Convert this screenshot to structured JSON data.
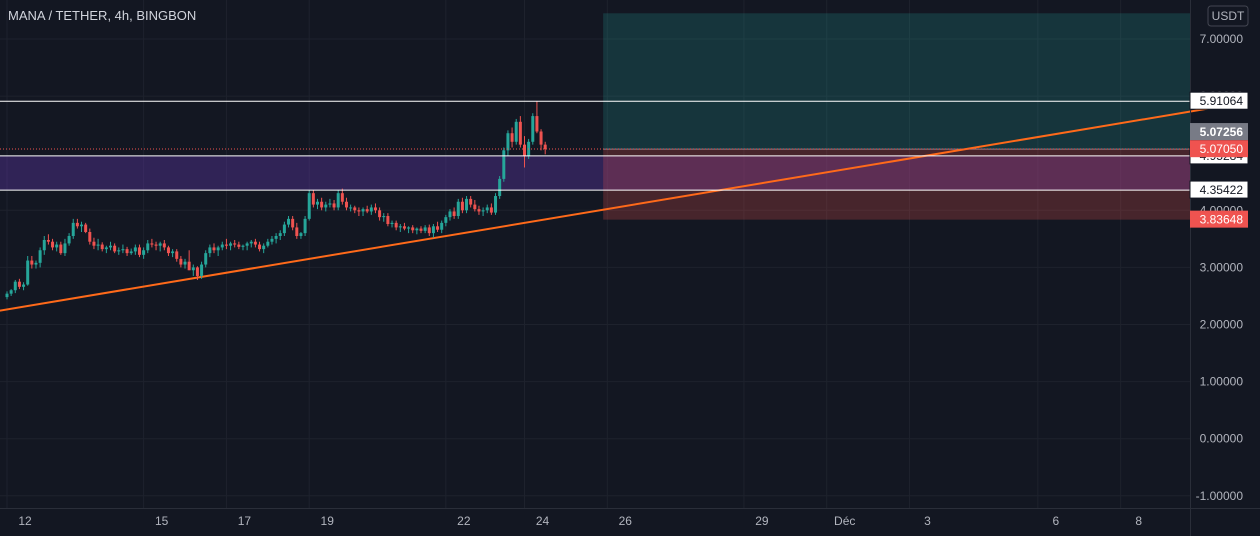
{
  "chart_data": {
    "type": "candlestick",
    "title": "MANA / TETHER, 4h, BINGBON",
    "currency_label": "USDT",
    "y_axis": {
      "range": [
        -1.3,
        7.45
      ],
      "ticks": [
        "7.00000",
        "3.00000",
        "2.00000",
        "1.00000",
        "0.00000",
        "-1.00000"
      ],
      "tick_values": [
        7,
        3,
        2,
        1,
        0,
        -1
      ],
      "partially_hidden_ticks": [
        "6.00000",
        "4.00000"
      ],
      "partially_hidden_values": [
        6,
        4
      ]
    },
    "x_axis": {
      "ticks": [
        "12",
        "15",
        "17",
        "19",
        "22",
        "24",
        "26",
        "29",
        "Déc",
        "3",
        "6",
        "8"
      ],
      "tick_index": [
        0,
        33,
        53,
        73,
        106,
        125,
        145,
        178,
        198,
        218,
        249,
        269
      ]
    },
    "candles_ohlc": [
      [
        2.48,
        2.58,
        2.44,
        2.54
      ],
      [
        2.54,
        2.62,
        2.5,
        2.6
      ],
      [
        2.6,
        2.78,
        2.55,
        2.75
      ],
      [
        2.75,
        2.8,
        2.62,
        2.66
      ],
      [
        2.66,
        2.74,
        2.6,
        2.7
      ],
      [
        2.7,
        3.2,
        2.68,
        3.12
      ],
      [
        3.12,
        3.2,
        2.98,
        3.05
      ],
      [
        3.05,
        3.12,
        2.98,
        3.08
      ],
      [
        3.08,
        3.35,
        3.0,
        3.3
      ],
      [
        3.3,
        3.55,
        3.22,
        3.48
      ],
      [
        3.48,
        3.58,
        3.4,
        3.45
      ],
      [
        3.45,
        3.5,
        3.3,
        3.35
      ],
      [
        3.35,
        3.45,
        3.28,
        3.4
      ],
      [
        3.4,
        3.45,
        3.22,
        3.25
      ],
      [
        3.25,
        3.5,
        3.2,
        3.42
      ],
      [
        3.42,
        3.6,
        3.38,
        3.55
      ],
      [
        3.55,
        3.85,
        3.5,
        3.78
      ],
      [
        3.78,
        3.85,
        3.68,
        3.72
      ],
      [
        3.72,
        3.8,
        3.62,
        3.75
      ],
      [
        3.75,
        3.78,
        3.6,
        3.62
      ],
      [
        3.62,
        3.68,
        3.4,
        3.45
      ],
      [
        3.45,
        3.52,
        3.32,
        3.38
      ],
      [
        3.38,
        3.5,
        3.3,
        3.4
      ],
      [
        3.4,
        3.44,
        3.28,
        3.32
      ],
      [
        3.32,
        3.38,
        3.25,
        3.35
      ],
      [
        3.35,
        3.45,
        3.3,
        3.38
      ],
      [
        3.38,
        3.42,
        3.25,
        3.28
      ],
      [
        3.28,
        3.35,
        3.22,
        3.3
      ],
      [
        3.3,
        3.4,
        3.25,
        3.32
      ],
      [
        3.32,
        3.36,
        3.2,
        3.25
      ],
      [
        3.25,
        3.33,
        3.22,
        3.28
      ],
      [
        3.28,
        3.4,
        3.22,
        3.35
      ],
      [
        3.35,
        3.4,
        3.18,
        3.22
      ],
      [
        3.22,
        3.35,
        3.15,
        3.3
      ],
      [
        3.3,
        3.48,
        3.25,
        3.42
      ],
      [
        3.42,
        3.5,
        3.35,
        3.4
      ],
      [
        3.4,
        3.45,
        3.3,
        3.38
      ],
      [
        3.38,
        3.45,
        3.28,
        3.42
      ],
      [
        3.42,
        3.48,
        3.3,
        3.35
      ],
      [
        3.35,
        3.38,
        3.2,
        3.25
      ],
      [
        3.25,
        3.32,
        3.18,
        3.28
      ],
      [
        3.28,
        3.32,
        3.1,
        3.15
      ],
      [
        3.15,
        3.2,
        3.0,
        3.05
      ],
      [
        3.05,
        3.15,
        2.98,
        3.1
      ],
      [
        3.1,
        3.3,
        2.95,
        2.95
      ],
      [
        2.95,
        3.05,
        2.85,
        3.0
      ],
      [
        3.0,
        3.02,
        2.78,
        2.85
      ],
      [
        2.85,
        3.1,
        2.8,
        3.05
      ],
      [
        3.05,
        3.3,
        3.0,
        3.25
      ],
      [
        3.25,
        3.4,
        3.18,
        3.35
      ],
      [
        3.35,
        3.42,
        3.25,
        3.3
      ],
      [
        3.3,
        3.38,
        3.2,
        3.35
      ],
      [
        3.35,
        3.45,
        3.3,
        3.4
      ],
      [
        3.4,
        3.5,
        3.32,
        3.38
      ],
      [
        3.38,
        3.45,
        3.3,
        3.42
      ],
      [
        3.42,
        3.48,
        3.35,
        3.4
      ],
      [
        3.4,
        3.45,
        3.32,
        3.36
      ],
      [
        3.36,
        3.4,
        3.3,
        3.38
      ],
      [
        3.38,
        3.45,
        3.3,
        3.42
      ],
      [
        3.42,
        3.48,
        3.35,
        3.45
      ],
      [
        3.45,
        3.5,
        3.35,
        3.4
      ],
      [
        3.4,
        3.45,
        3.28,
        3.32
      ],
      [
        3.32,
        3.42,
        3.25,
        3.38
      ],
      [
        3.38,
        3.5,
        3.35,
        3.45
      ],
      [
        3.45,
        3.55,
        3.4,
        3.5
      ],
      [
        3.5,
        3.6,
        3.42,
        3.55
      ],
      [
        3.55,
        3.65,
        3.48,
        3.6
      ],
      [
        3.6,
        3.8,
        3.55,
        3.75
      ],
      [
        3.75,
        3.9,
        3.7,
        3.85
      ],
      [
        3.85,
        3.9,
        3.65,
        3.7
      ],
      [
        3.7,
        3.78,
        3.5,
        3.55
      ],
      [
        3.55,
        3.62,
        3.5,
        3.6
      ],
      [
        3.6,
        3.9,
        3.55,
        3.85
      ],
      [
        3.85,
        4.35,
        3.82,
        4.3
      ],
      [
        4.3,
        4.35,
        4.05,
        4.1
      ],
      [
        4.1,
        4.2,
        4.02,
        4.15
      ],
      [
        4.15,
        4.22,
        4.0,
        4.05
      ],
      [
        4.05,
        4.15,
        3.98,
        4.1
      ],
      [
        4.1,
        4.2,
        4.05,
        4.12
      ],
      [
        4.12,
        4.18,
        4.0,
        4.05
      ],
      [
        4.05,
        4.35,
        4.0,
        4.3
      ],
      [
        4.3,
        4.38,
        4.1,
        4.15
      ],
      [
        4.15,
        4.22,
        4.0,
        4.05
      ],
      [
        4.05,
        4.1,
        3.98,
        4.05
      ],
      [
        4.05,
        4.08,
        3.95,
        4.0
      ],
      [
        4.0,
        4.05,
        3.9,
        3.98
      ],
      [
        3.98,
        4.05,
        3.9,
        4.02
      ],
      [
        4.02,
        4.08,
        3.95,
        3.98
      ],
      [
        3.98,
        4.1,
        3.92,
        4.05
      ],
      [
        4.05,
        4.12,
        3.95,
        4.0
      ],
      [
        4.0,
        4.05,
        3.82,
        3.88
      ],
      [
        3.88,
        3.95,
        3.8,
        3.9
      ],
      [
        3.9,
        3.95,
        3.72,
        3.76
      ],
      [
        3.76,
        3.82,
        3.7,
        3.78
      ],
      [
        3.78,
        3.82,
        3.65,
        3.7
      ],
      [
        3.7,
        3.76,
        3.62,
        3.72
      ],
      [
        3.72,
        3.78,
        3.65,
        3.68
      ],
      [
        3.68,
        3.72,
        3.6,
        3.7
      ],
      [
        3.7,
        3.74,
        3.6,
        3.65
      ],
      [
        3.65,
        3.7,
        3.58,
        3.68
      ],
      [
        3.68,
        3.72,
        3.6,
        3.64
      ],
      [
        3.64,
        3.74,
        3.6,
        3.7
      ],
      [
        3.7,
        3.75,
        3.55,
        3.6
      ],
      [
        3.6,
        3.76,
        3.52,
        3.72
      ],
      [
        3.72,
        3.8,
        3.62,
        3.66
      ],
      [
        3.66,
        3.82,
        3.6,
        3.78
      ],
      [
        3.78,
        3.92,
        3.72,
        3.88
      ],
      [
        3.88,
        4.02,
        3.82,
        3.98
      ],
      [
        3.98,
        4.05,
        3.85,
        3.9
      ],
      [
        3.9,
        4.2,
        3.85,
        4.15
      ],
      [
        4.15,
        4.22,
        3.95,
        4.0
      ],
      [
        4.0,
        4.25,
        3.95,
        4.2
      ],
      [
        4.2,
        4.25,
        4.05,
        4.1
      ],
      [
        4.1,
        4.18,
        3.98,
        4.02
      ],
      [
        4.02,
        4.08,
        3.92,
        3.98
      ],
      [
        3.98,
        4.05,
        3.9,
        4.0
      ],
      [
        4.0,
        4.1,
        3.95,
        4.05
      ],
      [
        4.05,
        4.12,
        3.92,
        3.96
      ],
      [
        3.96,
        4.3,
        3.92,
        4.25
      ],
      [
        4.25,
        4.6,
        4.2,
        4.55
      ],
      [
        4.55,
        5.1,
        4.5,
        5.05
      ],
      [
        5.05,
        5.4,
        4.95,
        5.35
      ],
      [
        5.35,
        5.45,
        5.1,
        5.2
      ],
      [
        5.2,
        5.6,
        5.15,
        5.55
      ],
      [
        5.55,
        5.65,
        5.1,
        5.15
      ],
      [
        5.15,
        5.3,
        4.75,
        4.95
      ],
      [
        4.95,
        5.25,
        4.9,
        5.2
      ],
      [
        5.2,
        5.7,
        5.15,
        5.65
      ],
      [
        5.65,
        5.91,
        5.35,
        5.38
      ],
      [
        5.38,
        5.42,
        5.05,
        5.15
      ],
      [
        5.15,
        5.2,
        4.98,
        5.07
      ]
    ],
    "horizontal_lines": [
      {
        "value": 5.91064,
        "label": "5.91064",
        "color": "#ffffff"
      },
      {
        "value": 4.95284,
        "label": "4.95284",
        "color": "#ffffff"
      },
      {
        "value": 4.35422,
        "label": "4.35422",
        "color": "#ffffff"
      }
    ],
    "purple_zone": {
      "from": 4.35422,
      "to": 4.95284,
      "color": "#673ab7"
    },
    "position": {
      "entry": 5.0705,
      "entry_label": "5.07050",
      "target_top": 7.45,
      "stop": 3.83648,
      "stop_label": "3.83648",
      "start_index": 144,
      "profit_color": "#26a69a",
      "loss_color": "#ef5350"
    },
    "last_price": {
      "value": 5.07256,
      "label": "5.07256"
    },
    "trendline": {
      "i1": -2,
      "v1": 2.24,
      "i2": 290,
      "v2": 5.78,
      "color": "#ff6a1a"
    },
    "colors": {
      "up": "#26a69a",
      "down": "#ef5350"
    }
  }
}
